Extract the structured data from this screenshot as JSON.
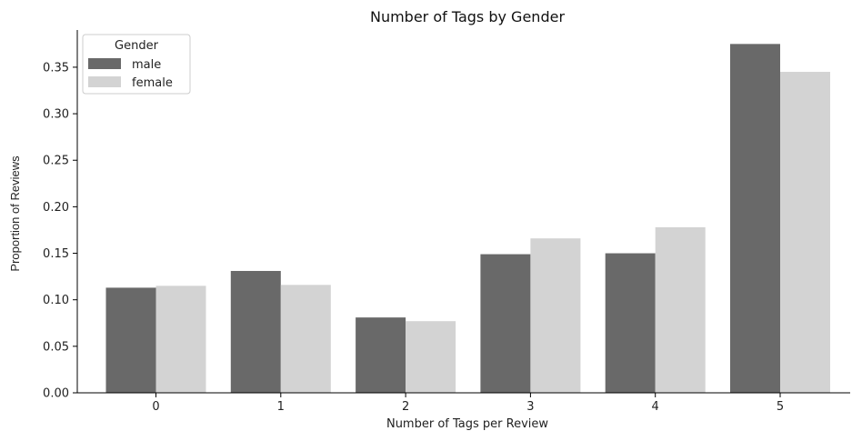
{
  "chart_data": {
    "type": "bar",
    "title": "Number of Tags by Gender",
    "xlabel": "Number of Tags per Review",
    "ylabel": "Proportion of Reviews",
    "categories": [
      "0",
      "1",
      "2",
      "3",
      "4",
      "5"
    ],
    "series": [
      {
        "name": "male",
        "color": "#696969",
        "values": [
          0.113,
          0.131,
          0.081,
          0.149,
          0.15,
          0.375
        ]
      },
      {
        "name": "female",
        "color": "#d3d3d3",
        "values": [
          0.115,
          0.116,
          0.077,
          0.166,
          0.178,
          0.345
        ]
      }
    ],
    "ylim": [
      0,
      0.39
    ],
    "yticks": [
      "0.00",
      "0.05",
      "0.10",
      "0.15",
      "0.20",
      "0.25",
      "0.30",
      "0.35"
    ],
    "legend": {
      "title": "Gender",
      "placement": "top-left"
    },
    "grid": false
  }
}
